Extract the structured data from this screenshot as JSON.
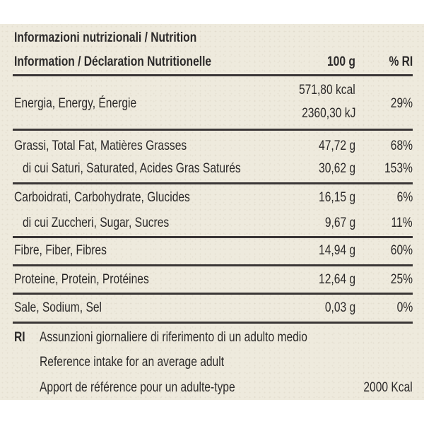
{
  "header": {
    "title_line1": "Informazioni nutrizionali / Nutrition",
    "title_line2": "Information / Déclaration Nutritionelle",
    "col_100g": "100 g",
    "col_ri": "% RI"
  },
  "rows": {
    "energy": {
      "label": "Energia, Energy, Énergie",
      "kcal": "571,80 kcal",
      "kj": "2360,30 kJ",
      "ri": "29%"
    },
    "fat": {
      "label": "Grassi, Total Fat, Matières Grasses",
      "value": "47,72 g",
      "ri": "68%"
    },
    "satfat": {
      "label": "di cui Saturi, Saturated, Acides Gras Saturés",
      "value": "30,62 g",
      "ri": "153%"
    },
    "carbs": {
      "label": "Carboidrati, Carbohydrate, Glucides",
      "value": "16,15 g",
      "ri": "6%"
    },
    "sugars": {
      "label": "di cui Zuccheri, Sugar, Sucres",
      "value": "9,67 g",
      "ri": "11%"
    },
    "fibre": {
      "label": "Fibre, Fiber, Fibres",
      "value": "14,94 g",
      "ri": "60%"
    },
    "protein": {
      "label": "Proteine, Protein, Protéines",
      "value": "12,64 g",
      "ri": "25%"
    },
    "salt": {
      "label": "Sale, Sodium, Sel",
      "value": "0,03 g",
      "ri": "0%"
    }
  },
  "footnote": {
    "abbr": "RI",
    "line1": "Assunzioni giornaliere di riferimento di un adulto medio",
    "line2": "Reference intake for an average adult",
    "line3": "Apport de référence pour un adulte-type",
    "kcal": "2000 Kcal"
  }
}
